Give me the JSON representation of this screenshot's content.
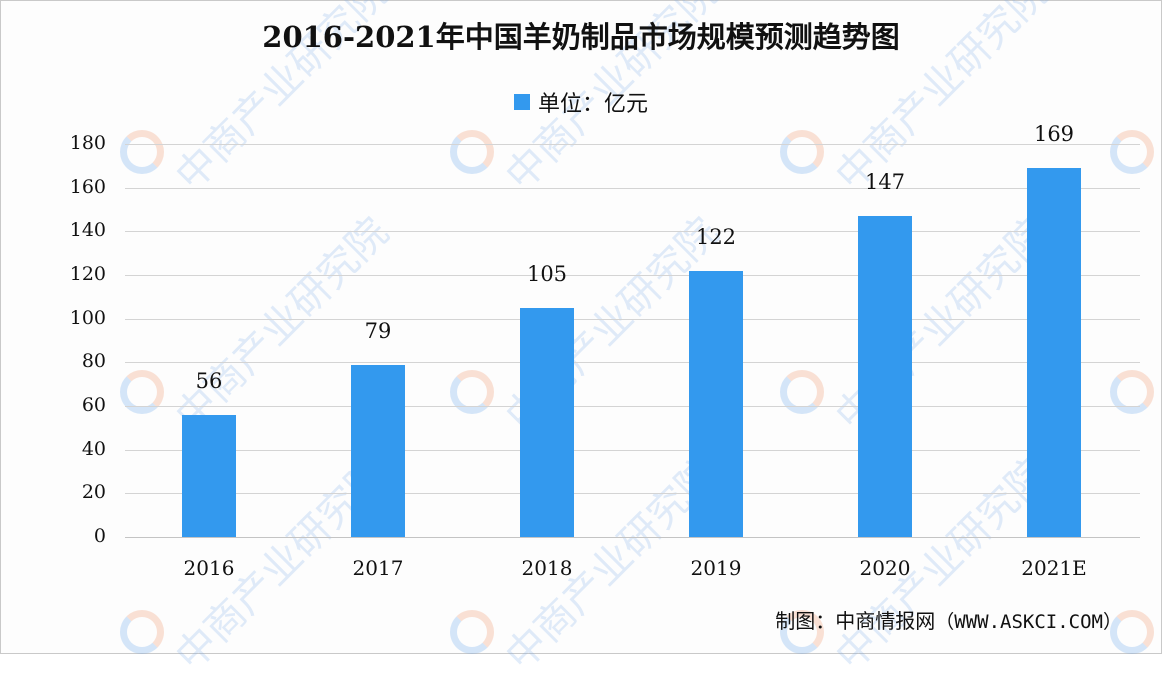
{
  "title": "2016-2021年中国羊奶制品市场规模预测趋势图",
  "legend": {
    "label": "单位：亿元",
    "color": "#3399ee"
  },
  "source": {
    "prefix": "制图：中商情报网",
    "url": "（WWW.ASKCI.COM）"
  },
  "watermark": {
    "text": "中商产业研究院"
  },
  "colors": {
    "bar": "#3399ee",
    "grid": "#d4d4d4",
    "text": "#111111"
  },
  "chart_data": {
    "type": "bar",
    "title": "2016-2021年中国羊奶制品市场规模预测趋势图",
    "subtitle": "单位：亿元",
    "xlabel": "",
    "ylabel": "",
    "categories": [
      "2016",
      "2017",
      "2018",
      "2019",
      "2020",
      "2021E"
    ],
    "values": [
      56,
      79,
      105,
      122,
      147,
      169
    ],
    "series": [
      {
        "name": "单位：亿元",
        "values": [
          56,
          79,
          105,
          122,
          147,
          169
        ]
      }
    ],
    "ylim": [
      0,
      180
    ],
    "yticks": [
      0,
      20,
      40,
      60,
      80,
      100,
      120,
      140,
      160,
      180
    ],
    "grid": true,
    "legend_position": "top",
    "data_labels": true,
    "annotations": [
      "制图：中商情报网（WWW.ASKCI.COM）"
    ]
  }
}
